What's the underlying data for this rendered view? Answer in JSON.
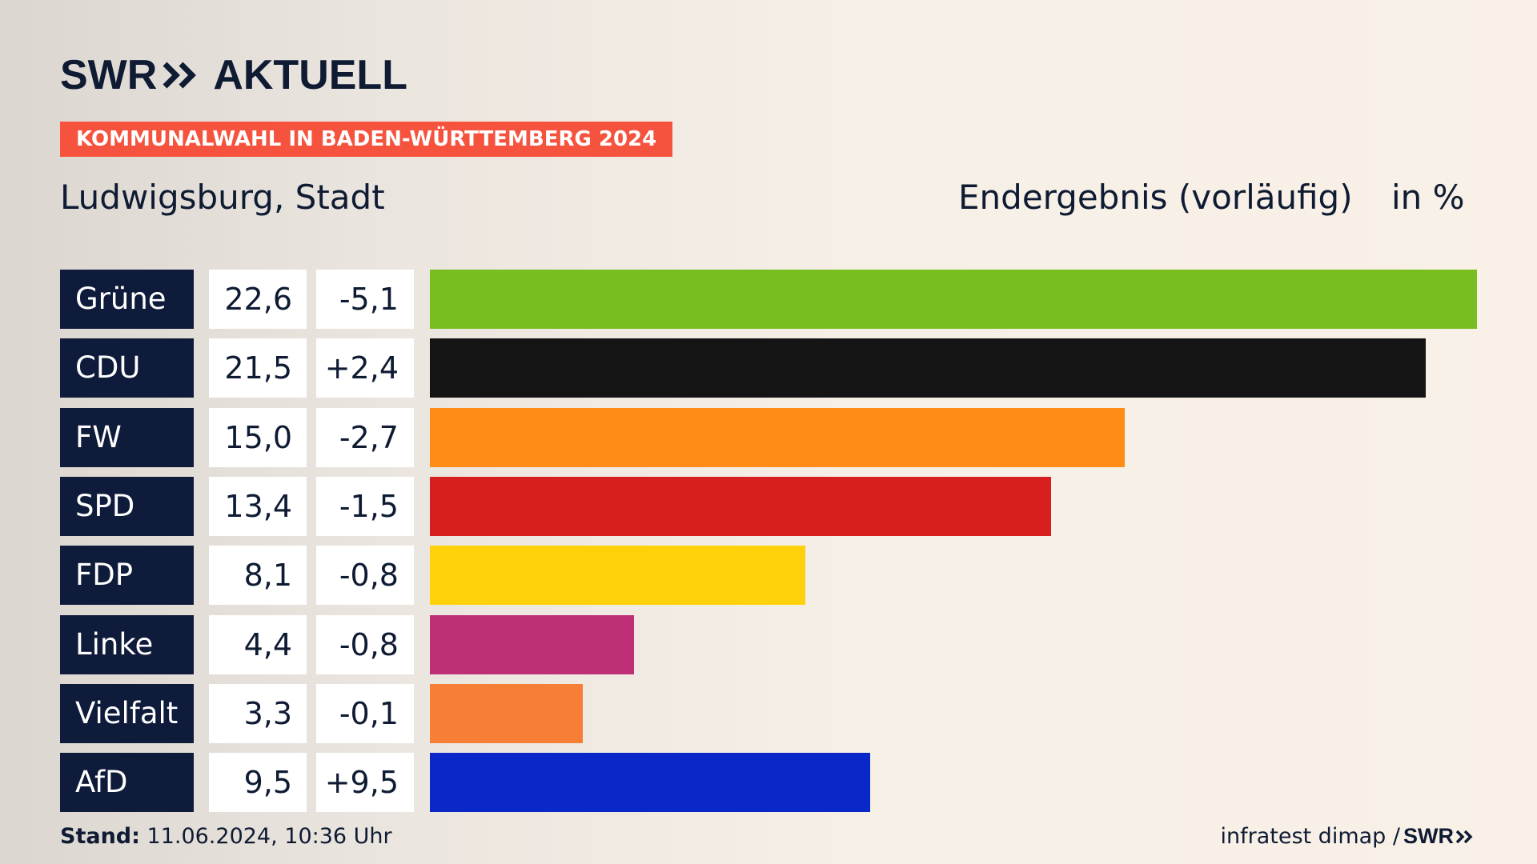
{
  "header": {
    "logo_left": "SWR",
    "logo_right": "AKTUELL",
    "banner": "KOMMUNALWAHL IN BADEN-WÜRTTEMBERG 2024",
    "region": "Ludwigsburg, Stadt",
    "status": "Endergebnis (vorläufig)",
    "unit": "in %"
  },
  "colors": {
    "brand_navy": "#0e1b3a",
    "banner_red": "#f5533e"
  },
  "chart_data": {
    "type": "bar",
    "orientation": "horizontal",
    "categories": [
      "Grüne",
      "CDU",
      "FW",
      "SPD",
      "FDP",
      "Linke",
      "Vielfalt",
      "AfD"
    ],
    "values": [
      22.6,
      21.5,
      15.0,
      13.4,
      8.1,
      4.4,
      3.3,
      9.5
    ],
    "value_labels": [
      "22,6",
      "21,5",
      "15,0",
      "13,4",
      "8,1",
      "4,4",
      "3,3",
      "9,5"
    ],
    "diff_labels": [
      "-5,1",
      "+2,4",
      "-2,7",
      "-1,5",
      "-0,8",
      "-0,8",
      "-0,1",
      "+9,5"
    ],
    "diffs": [
      -5.1,
      2.4,
      -2.7,
      -1.5,
      -0.8,
      -0.8,
      -0.1,
      9.5
    ],
    "bar_colors": [
      "#78be20",
      "#141414",
      "#ff8c16",
      "#d71f1f",
      "#ffd10a",
      "#bd3075",
      "#f77e35",
      "#0a28c8"
    ],
    "xlim": [
      0,
      22.6
    ],
    "grid": false,
    "legend": "none"
  },
  "footer": {
    "stand_label": "Stand:",
    "stand_value": "11.06.2024, 10:36 Uhr",
    "source": "infratest dimap /",
    "source_logo": "SWR"
  }
}
